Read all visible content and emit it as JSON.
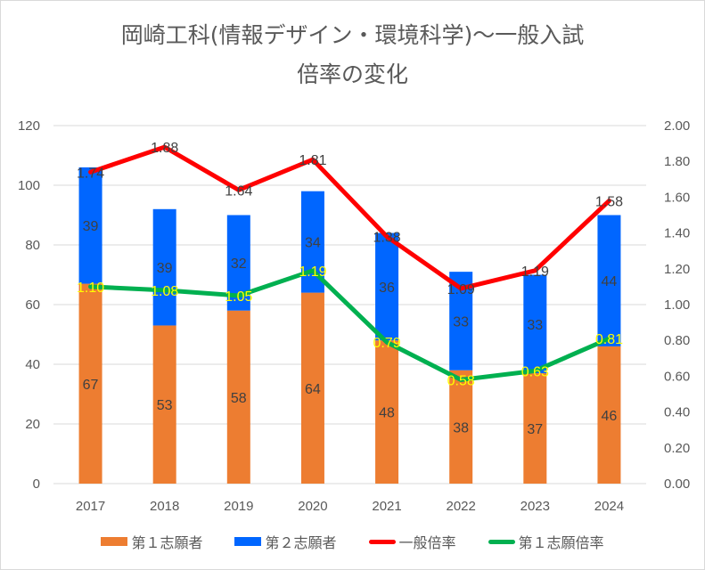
{
  "chart_data": {
    "type": "bar",
    "title_line1": "岡崎工科(情報デザイン・環境科学)～一般入試",
    "title_line2": "倍率の変化",
    "categories": [
      "2017",
      "2018",
      "2019",
      "2020",
      "2021",
      "2022",
      "2023",
      "2024"
    ],
    "y_left": {
      "min": 0,
      "max": 120,
      "step": 20,
      "ticks": [
        "0",
        "20",
        "40",
        "60",
        "80",
        "100",
        "120"
      ]
    },
    "y_right": {
      "min": 0,
      "max": 2,
      "step": 0.2,
      "ticks": [
        "0.00",
        "0.20",
        "0.40",
        "0.60",
        "0.80",
        "1.00",
        "1.20",
        "1.40",
        "1.60",
        "1.80",
        "2.00"
      ]
    },
    "grid": true,
    "legend_position": "bottom",
    "series": [
      {
        "name": "第１志願者",
        "type": "bar",
        "stack": true,
        "axis": "left",
        "color": "#ed7d31",
        "values": [
          67,
          53,
          58,
          64,
          48,
          38,
          37,
          46
        ],
        "labels": [
          "67",
          "53",
          "58",
          "64",
          "48",
          "38",
          "37",
          "46"
        ]
      },
      {
        "name": "第２志願者",
        "type": "bar",
        "stack": true,
        "axis": "left",
        "color": "#0066ff",
        "values": [
          39,
          39,
          32,
          34,
          36,
          33,
          33,
          44
        ],
        "labels": [
          "39",
          "39",
          "32",
          "34",
          "36",
          "33",
          "33",
          "44"
        ]
      },
      {
        "name": "一般倍率",
        "type": "line",
        "axis": "right",
        "color": "#ff0000",
        "values": [
          1.74,
          1.88,
          1.64,
          1.81,
          1.38,
          1.09,
          1.19,
          1.58
        ],
        "labels": [
          "1.74",
          "1.88",
          "1.64",
          "1.81",
          "1.38",
          "1.09",
          "1.19",
          "1.58"
        ]
      },
      {
        "name": "第１志願倍率",
        "type": "line",
        "axis": "right",
        "color": "#00b050",
        "values": [
          1.1,
          1.08,
          1.05,
          1.19,
          0.79,
          0.58,
          0.63,
          0.81
        ],
        "labels": [
          "1.10",
          "1.08",
          "1.05",
          "1.19",
          "0.79",
          "0.58",
          "0.63",
          "0.81"
        ]
      }
    ]
  }
}
